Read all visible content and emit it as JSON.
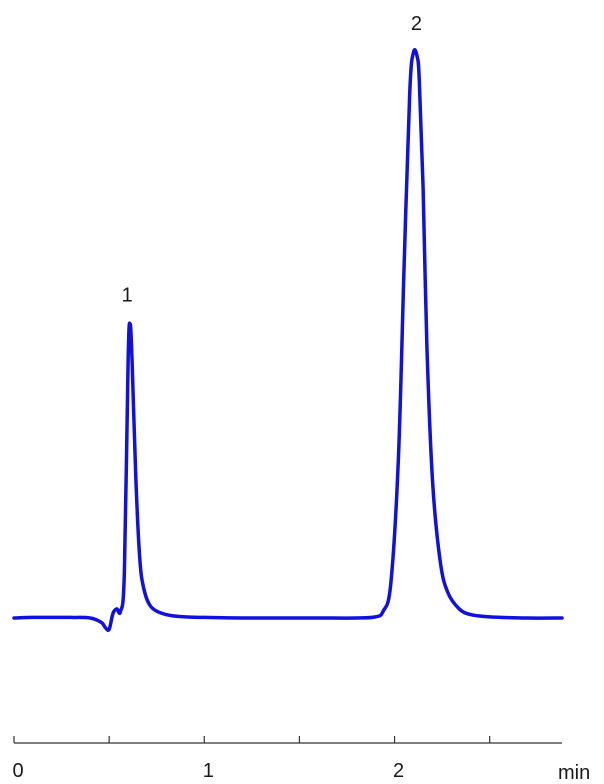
{
  "chart_data": {
    "type": "line",
    "title": "",
    "xlabel": "min",
    "ylabel": "",
    "xlim": [
      0,
      2.88
    ],
    "ylim": [
      -0.08,
      1.03
    ],
    "major_ticks": [
      0,
      1,
      2
    ],
    "minor_ticks": [
      0.5,
      1.5,
      2.5
    ],
    "tick_labels": [
      "0",
      "1",
      "2"
    ],
    "grid": false,
    "legend": "none",
    "line_color": "#1010e0",
    "baseline": 0,
    "peaks": [
      {
        "label": "1",
        "retention_time": 0.6,
        "height": 0.52
      },
      {
        "label": "2",
        "retention_time": 2.12,
        "height": 1.0
      }
    ],
    "series": [
      {
        "x": [
          0.0,
          0.1,
          0.2,
          0.3,
          0.4,
          0.46,
          0.48,
          0.5,
          0.52,
          0.54,
          0.56,
          0.58,
          0.6,
          0.61,
          0.62,
          0.64,
          0.66,
          0.68,
          0.72,
          0.8,
          0.9,
          1.0,
          1.2,
          1.4,
          1.6,
          1.8,
          1.9,
          1.94,
          1.98,
          2.02,
          2.05,
          2.08,
          2.1,
          2.12,
          2.13,
          2.15,
          2.17,
          2.2,
          2.24,
          2.28,
          2.34,
          2.4,
          2.5,
          2.7,
          2.88
        ],
        "y": [
          0.0,
          0.001,
          0.001,
          0.001,
          0.0,
          -0.008,
          -0.017,
          -0.02,
          0.008,
          0.016,
          0.012,
          0.08,
          0.46,
          0.52,
          0.46,
          0.25,
          0.11,
          0.055,
          0.02,
          0.006,
          0.002,
          0.001,
          0.0,
          0.0,
          0.0,
          0.0,
          0.002,
          0.012,
          0.06,
          0.28,
          0.62,
          0.93,
          1.0,
          0.99,
          0.95,
          0.76,
          0.48,
          0.24,
          0.1,
          0.045,
          0.016,
          0.006,
          0.002,
          0.0,
          0.0
        ]
      }
    ]
  }
}
